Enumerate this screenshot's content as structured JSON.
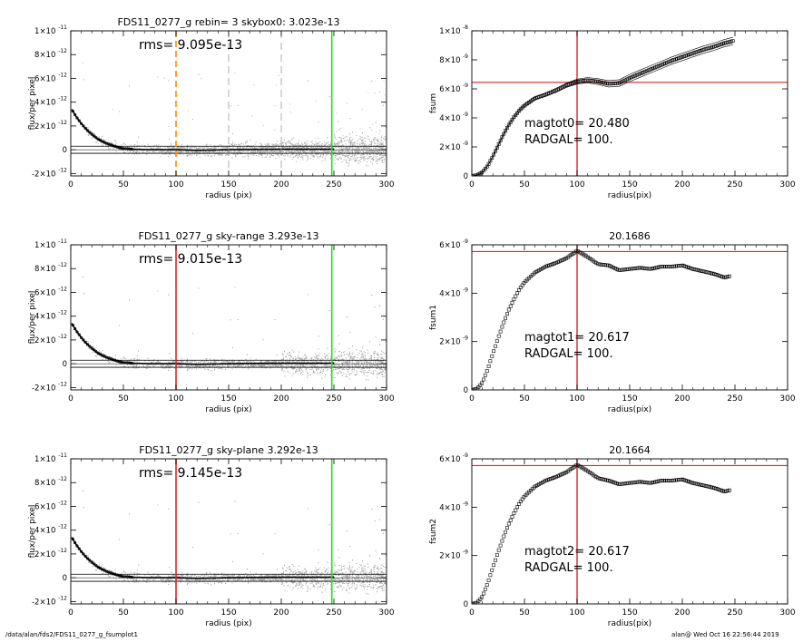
{
  "footer": {
    "path": "/data/alan/fds2/FDS11_0277_g_fsumplot1",
    "timestamp": "alan@  Wed Oct 16 22:56:44 2019"
  },
  "colors": {
    "points": "#a8a8a8",
    "profile": "#000000",
    "red_line": "#d62728",
    "green_line": "#22dd22",
    "orange_line": "#ff8c00",
    "gray_dash": "#9a9a9a"
  },
  "chart_data": [
    {
      "type": "scatter",
      "title": "FDS11_0277_g rebin= 3    skybox0:  3.023e-13",
      "annotation": "rms= 9.095e-13",
      "xlabel": "radius (pix)",
      "ylabel": "flux/per pixel",
      "xlim": [
        0,
        300
      ],
      "ylim": [
        -2.2e-12,
        1e-11
      ],
      "xticks": [
        "0",
        "50",
        "100",
        "150",
        "200",
        "250",
        "300"
      ],
      "yticks": [
        {
          "mant": "-2×10",
          "exp": "-12",
          "value": -2e-12
        },
        {
          "mant": "0",
          "exp": "",
          "value": 0
        },
        {
          "mant": "2×10",
          "exp": "-12",
          "value": 2e-12
        },
        {
          "mant": "4×10",
          "exp": "-12",
          "value": 4e-12
        },
        {
          "mant": "6×10",
          "exp": "-12",
          "value": 6e-12
        },
        {
          "mant": "8×10",
          "exp": "-12",
          "value": 8e-12
        },
        {
          "mant": "1×10",
          "exp": "-11",
          "value": 1e-11
        }
      ],
      "hlines": [
        3e-13,
        -3e-13
      ],
      "vlines": [
        {
          "x": 100,
          "color": "orange",
          "style": "dashed"
        },
        {
          "x": 150,
          "color": "gray",
          "style": "dashed"
        },
        {
          "x": 200,
          "color": "gray",
          "style": "dashed"
        },
        {
          "x": 248,
          "color": "green",
          "style": "solid"
        }
      ],
      "profile": {
        "x": [
          1,
          5,
          10,
          15,
          20,
          25,
          30,
          35,
          40,
          45,
          50,
          60,
          70,
          80,
          100,
          120,
          150,
          200,
          250
        ],
        "y": [
          3.4e-12,
          2.8e-12,
          2.2e-12,
          1.7e-12,
          1.3e-12,
          9.5e-13,
          7e-13,
          5e-13,
          3.5e-13,
          2e-13,
          1e-13,
          5e-14,
          2e-14,
          0.0,
          0.0,
          -5e-14,
          0.0,
          5e-14,
          5e-14
        ]
      },
      "scatter_profile": "sky-dashed"
    },
    {
      "type": "line",
      "title": "",
      "annotations": [
        "magtot0=  20.480",
        "RADGAL=    100."
      ],
      "xlabel": "radius(pix)",
      "ylabel": "fsum",
      "xlim": [
        0,
        300
      ],
      "ylim": [
        0,
        1e-08
      ],
      "xticks": [
        "0",
        "50",
        "100",
        "150",
        "200",
        "250",
        "300"
      ],
      "yticks": [
        {
          "mant": "0",
          "exp": "",
          "value": 0
        },
        {
          "mant": "2×10",
          "exp": "-9",
          "value": 2e-09
        },
        {
          "mant": "4×10",
          "exp": "-9",
          "value": 4e-09
        },
        {
          "mant": "6×10",
          "exp": "-9",
          "value": 6e-09
        },
        {
          "mant": "8×10",
          "exp": "-9",
          "value": 8e-09
        },
        {
          "mant": "1×10",
          "exp": "-8",
          "value": 1e-08
        }
      ],
      "hline": 6.45e-09,
      "vline": 100,
      "envelope": 2.5e-10,
      "curve": {
        "x": [
          0,
          5,
          10,
          15,
          20,
          25,
          30,
          35,
          40,
          45,
          50,
          60,
          70,
          80,
          90,
          100,
          110,
          120,
          130,
          140,
          150,
          160,
          170,
          180,
          190,
          200,
          210,
          220,
          230,
          240,
          248
        ],
        "y": [
          0,
          5e-11,
          2.5e-10,
          7e-10,
          1.35e-09,
          2.1e-09,
          2.85e-09,
          3.5e-09,
          4.05e-09,
          4.5e-09,
          4.85e-09,
          5.35e-09,
          5.6e-09,
          5.9e-09,
          6.25e-09,
          6.5e-09,
          6.6e-09,
          6.5e-09,
          6.35e-09,
          6.4e-09,
          6.75e-09,
          7.05e-09,
          7.35e-09,
          7.65e-09,
          7.95e-09,
          8.2e-09,
          8.45e-09,
          8.7e-09,
          8.9e-09,
          9.15e-09,
          9.3e-09
        ]
      }
    },
    {
      "type": "scatter",
      "title": "FDS11_0277_g sky-range  3.293e-13",
      "annotation": "rms= 9.015e-13",
      "xlabel": "radius (pix)",
      "ylabel": "flux/per pixel",
      "xlim": [
        0,
        300
      ],
      "ylim": [
        -2.2e-12,
        1e-11
      ],
      "xticks": [
        "0",
        "50",
        "100",
        "150",
        "200",
        "250",
        "300"
      ],
      "yticks": [
        {
          "mant": "-2×10",
          "exp": "-12",
          "value": -2e-12
        },
        {
          "mant": "0",
          "exp": "",
          "value": 0
        },
        {
          "mant": "2×10",
          "exp": "-12",
          "value": 2e-12
        },
        {
          "mant": "4×10",
          "exp": "-12",
          "value": 4e-12
        },
        {
          "mant": "6×10",
          "exp": "-12",
          "value": 6e-12
        },
        {
          "mant": "8×10",
          "exp": "-12",
          "value": 8e-12
        },
        {
          "mant": "1×10",
          "exp": "-11",
          "value": 1e-11
        }
      ],
      "hlines": [
        3e-13,
        -3e-13
      ],
      "vlines": [
        {
          "x": 100,
          "color": "red",
          "style": "solid"
        },
        {
          "x": 248,
          "color": "green",
          "style": "solid"
        }
      ],
      "profile": {
        "x": [
          1,
          5,
          10,
          15,
          20,
          25,
          30,
          35,
          40,
          45,
          50,
          60,
          70,
          80,
          100,
          120,
          150,
          200,
          250
        ],
        "y": [
          3.4e-12,
          2.8e-12,
          2.2e-12,
          1.7e-12,
          1.3e-12,
          9.5e-13,
          7e-13,
          5e-13,
          3.5e-13,
          2e-13,
          1e-13,
          5e-14,
          2e-14,
          0.0,
          0.0,
          -5e-14,
          0.0,
          5e-14,
          5e-14
        ]
      },
      "scatter_profile": "sky-bands"
    },
    {
      "type": "line",
      "title": "20.1686",
      "annotations": [
        "magtot1=  20.617",
        "RADGAL=    100."
      ],
      "xlabel": "radius(pix)",
      "ylabel": "fsum1",
      "xlim": [
        0,
        300
      ],
      "ylim": [
        0,
        6e-09
      ],
      "xticks": [
        "0",
        "50",
        "100",
        "150",
        "200",
        "250",
        "300"
      ],
      "yticks": [
        {
          "mant": "0",
          "exp": "",
          "value": 0
        },
        {
          "mant": "2×10",
          "exp": "-9",
          "value": 2e-09
        },
        {
          "mant": "4×10",
          "exp": "-9",
          "value": 4e-09
        },
        {
          "mant": "6×10",
          "exp": "-9",
          "value": 6e-09
        }
      ],
      "hline": 5.72e-09,
      "vline": 100,
      "envelope": 0,
      "curve": {
        "x": [
          0,
          5,
          10,
          15,
          20,
          25,
          30,
          35,
          40,
          45,
          50,
          60,
          70,
          80,
          90,
          100,
          110,
          120,
          130,
          140,
          150,
          160,
          170,
          180,
          190,
          200,
          210,
          220,
          230,
          240,
          245
        ],
        "y": [
          0,
          5e-11,
          3e-10,
          8.5e-10,
          1.5e-09,
          2.15e-09,
          2.75e-09,
          3.3e-09,
          3.75e-09,
          4.15e-09,
          4.45e-09,
          4.85e-09,
          5.1e-09,
          5.25e-09,
          5.45e-09,
          5.75e-09,
          5.5e-09,
          5.2e-09,
          5.15e-09,
          4.95e-09,
          5e-09,
          5.05e-09,
          5e-09,
          5.1e-09,
          5.1e-09,
          5.15e-09,
          5e-09,
          4.9e-09,
          4.8e-09,
          4.65e-09,
          4.7e-09
        ]
      }
    },
    {
      "type": "scatter",
      "title": "FDS11_0277_g sky-plane  3.292e-13",
      "annotation": "rms= 9.145e-13",
      "xlabel": "radius (pix)",
      "ylabel": "flux/per pixel",
      "xlim": [
        0,
        300
      ],
      "ylim": [
        -2.2e-12,
        1e-11
      ],
      "xticks": [
        "0",
        "50",
        "100",
        "150",
        "200",
        "250",
        "300"
      ],
      "yticks": [
        {
          "mant": "-2×10",
          "exp": "-12",
          "value": -2e-12
        },
        {
          "mant": "0",
          "exp": "",
          "value": 0
        },
        {
          "mant": "2×10",
          "exp": "-12",
          "value": 2e-12
        },
        {
          "mant": "4×10",
          "exp": "-12",
          "value": 4e-12
        },
        {
          "mant": "6×10",
          "exp": "-12",
          "value": 6e-12
        },
        {
          "mant": "8×10",
          "exp": "-12",
          "value": 8e-12
        },
        {
          "mant": "1×10",
          "exp": "-11",
          "value": 1e-11
        }
      ],
      "hlines": [
        3e-13,
        -3e-13
      ],
      "vlines": [
        {
          "x": 100,
          "color": "red",
          "style": "solid"
        },
        {
          "x": 248,
          "color": "green",
          "style": "solid"
        }
      ],
      "profile": {
        "x": [
          1,
          5,
          10,
          15,
          20,
          25,
          30,
          35,
          40,
          45,
          50,
          60,
          70,
          80,
          100,
          120,
          150,
          200,
          250
        ],
        "y": [
          3.4e-12,
          2.8e-12,
          2.2e-12,
          1.7e-12,
          1.3e-12,
          9.5e-13,
          7e-13,
          5e-13,
          3.5e-13,
          2e-13,
          1e-13,
          5e-14,
          2e-14,
          0.0,
          0.0,
          -5e-14,
          0.0,
          5e-14,
          5e-14
        ]
      },
      "scatter_profile": "sky-bands"
    },
    {
      "type": "line",
      "title": "20.1664",
      "annotations": [
        "magtot2=  20.617",
        "RADGAL=    100."
      ],
      "xlabel": "radius(pix)",
      "ylabel": "fsum2",
      "xlim": [
        0,
        300
      ],
      "ylim": [
        0,
        6e-09
      ],
      "xticks": [
        "0",
        "50",
        "100",
        "150",
        "200",
        "250",
        "300"
      ],
      "yticks": [
        {
          "mant": "0",
          "exp": "",
          "value": 0
        },
        {
          "mant": "2×10",
          "exp": "-9",
          "value": 2e-09
        },
        {
          "mant": "4×10",
          "exp": "-9",
          "value": 4e-09
        },
        {
          "mant": "6×10",
          "exp": "-9",
          "value": 6e-09
        }
      ],
      "hline": 5.72e-09,
      "vline": 100,
      "envelope": 0,
      "curve": {
        "x": [
          0,
          5,
          10,
          15,
          20,
          25,
          30,
          35,
          40,
          45,
          50,
          60,
          70,
          80,
          90,
          100,
          110,
          120,
          130,
          140,
          150,
          160,
          170,
          180,
          190,
          200,
          210,
          220,
          230,
          240,
          245
        ],
        "y": [
          0,
          5e-11,
          3e-10,
          8.5e-10,
          1.5e-09,
          2.15e-09,
          2.75e-09,
          3.3e-09,
          3.75e-09,
          4.15e-09,
          4.45e-09,
          4.85e-09,
          5.1e-09,
          5.25e-09,
          5.45e-09,
          5.75e-09,
          5.5e-09,
          5.2e-09,
          5.1e-09,
          4.95e-09,
          5e-09,
          5.05e-09,
          5e-09,
          5.1e-09,
          5.1e-09,
          5.15e-09,
          5e-09,
          4.9e-09,
          4.8e-09,
          4.65e-09,
          4.7e-09
        ]
      }
    }
  ]
}
